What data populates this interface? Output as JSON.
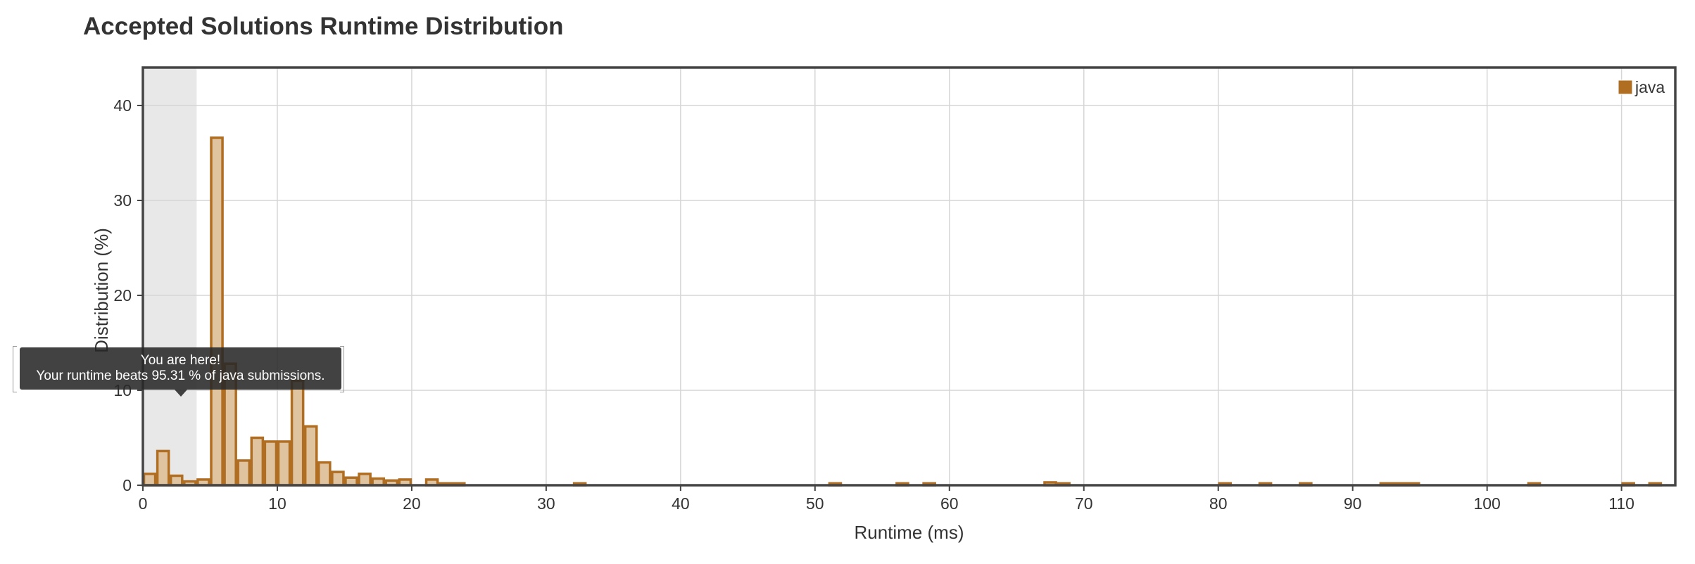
{
  "chart_data": {
    "type": "bar",
    "title": "Accepted Solutions Runtime Distribution",
    "xlabel": "Runtime (ms)",
    "ylabel": "Distribution (%)",
    "xlim": [
      0,
      114
    ],
    "ylim": [
      0,
      44
    ],
    "x_ticks": [
      0,
      10,
      20,
      30,
      40,
      50,
      60,
      70,
      80,
      90,
      100,
      110
    ],
    "y_ticks": [
      0,
      10,
      20,
      30,
      40
    ],
    "grid": true,
    "legend": "top-right",
    "highlight_range": [
      0,
      4
    ],
    "colors": {
      "bar_fill": "#e0c4a0",
      "bar_stroke": "#b06e22",
      "highlight": "#e8e8e8",
      "legend_swatch": "#b06e22"
    },
    "series": [
      {
        "name": "java",
        "bins": [
          {
            "x": 0,
            "y": 1.2
          },
          {
            "x": 1,
            "y": 3.6
          },
          {
            "x": 2,
            "y": 1.0
          },
          {
            "x": 3,
            "y": 0.4
          },
          {
            "x": 4,
            "y": 0.6
          },
          {
            "x": 5,
            "y": 36.6
          },
          {
            "x": 6,
            "y": 12.8
          },
          {
            "x": 7,
            "y": 2.6
          },
          {
            "x": 8,
            "y": 5.0
          },
          {
            "x": 9,
            "y": 4.6
          },
          {
            "x": 10,
            "y": 4.6
          },
          {
            "x": 11,
            "y": 11.0
          },
          {
            "x": 12,
            "y": 6.2
          },
          {
            "x": 13,
            "y": 2.4
          },
          {
            "x": 14,
            "y": 1.4
          },
          {
            "x": 15,
            "y": 0.8
          },
          {
            "x": 16,
            "y": 1.2
          },
          {
            "x": 17,
            "y": 0.7
          },
          {
            "x": 18,
            "y": 0.5
          },
          {
            "x": 19,
            "y": 0.6
          },
          {
            "x": 21,
            "y": 0.6
          },
          {
            "x": 22,
            "y": 0.2
          },
          {
            "x": 23,
            "y": 0.2
          },
          {
            "x": 32,
            "y": 0.2
          },
          {
            "x": 51,
            "y": 0.2
          },
          {
            "x": 56,
            "y": 0.2
          },
          {
            "x": 58,
            "y": 0.2
          },
          {
            "x": 67,
            "y": 0.3
          },
          {
            "x": 68,
            "y": 0.2
          },
          {
            "x": 80,
            "y": 0.2
          },
          {
            "x": 83,
            "y": 0.2
          },
          {
            "x": 86,
            "y": 0.2
          },
          {
            "x": 92,
            "y": 0.2
          },
          {
            "x": 93,
            "y": 0.2
          },
          {
            "x": 94,
            "y": 0.2
          },
          {
            "x": 103,
            "y": 0.2
          },
          {
            "x": 110,
            "y": 0.2
          },
          {
            "x": 112,
            "y": 0.2
          }
        ]
      }
    ]
  },
  "tooltip": {
    "line1": "You are here!",
    "line2": "Your runtime beats 95.31 % of java submissions."
  }
}
